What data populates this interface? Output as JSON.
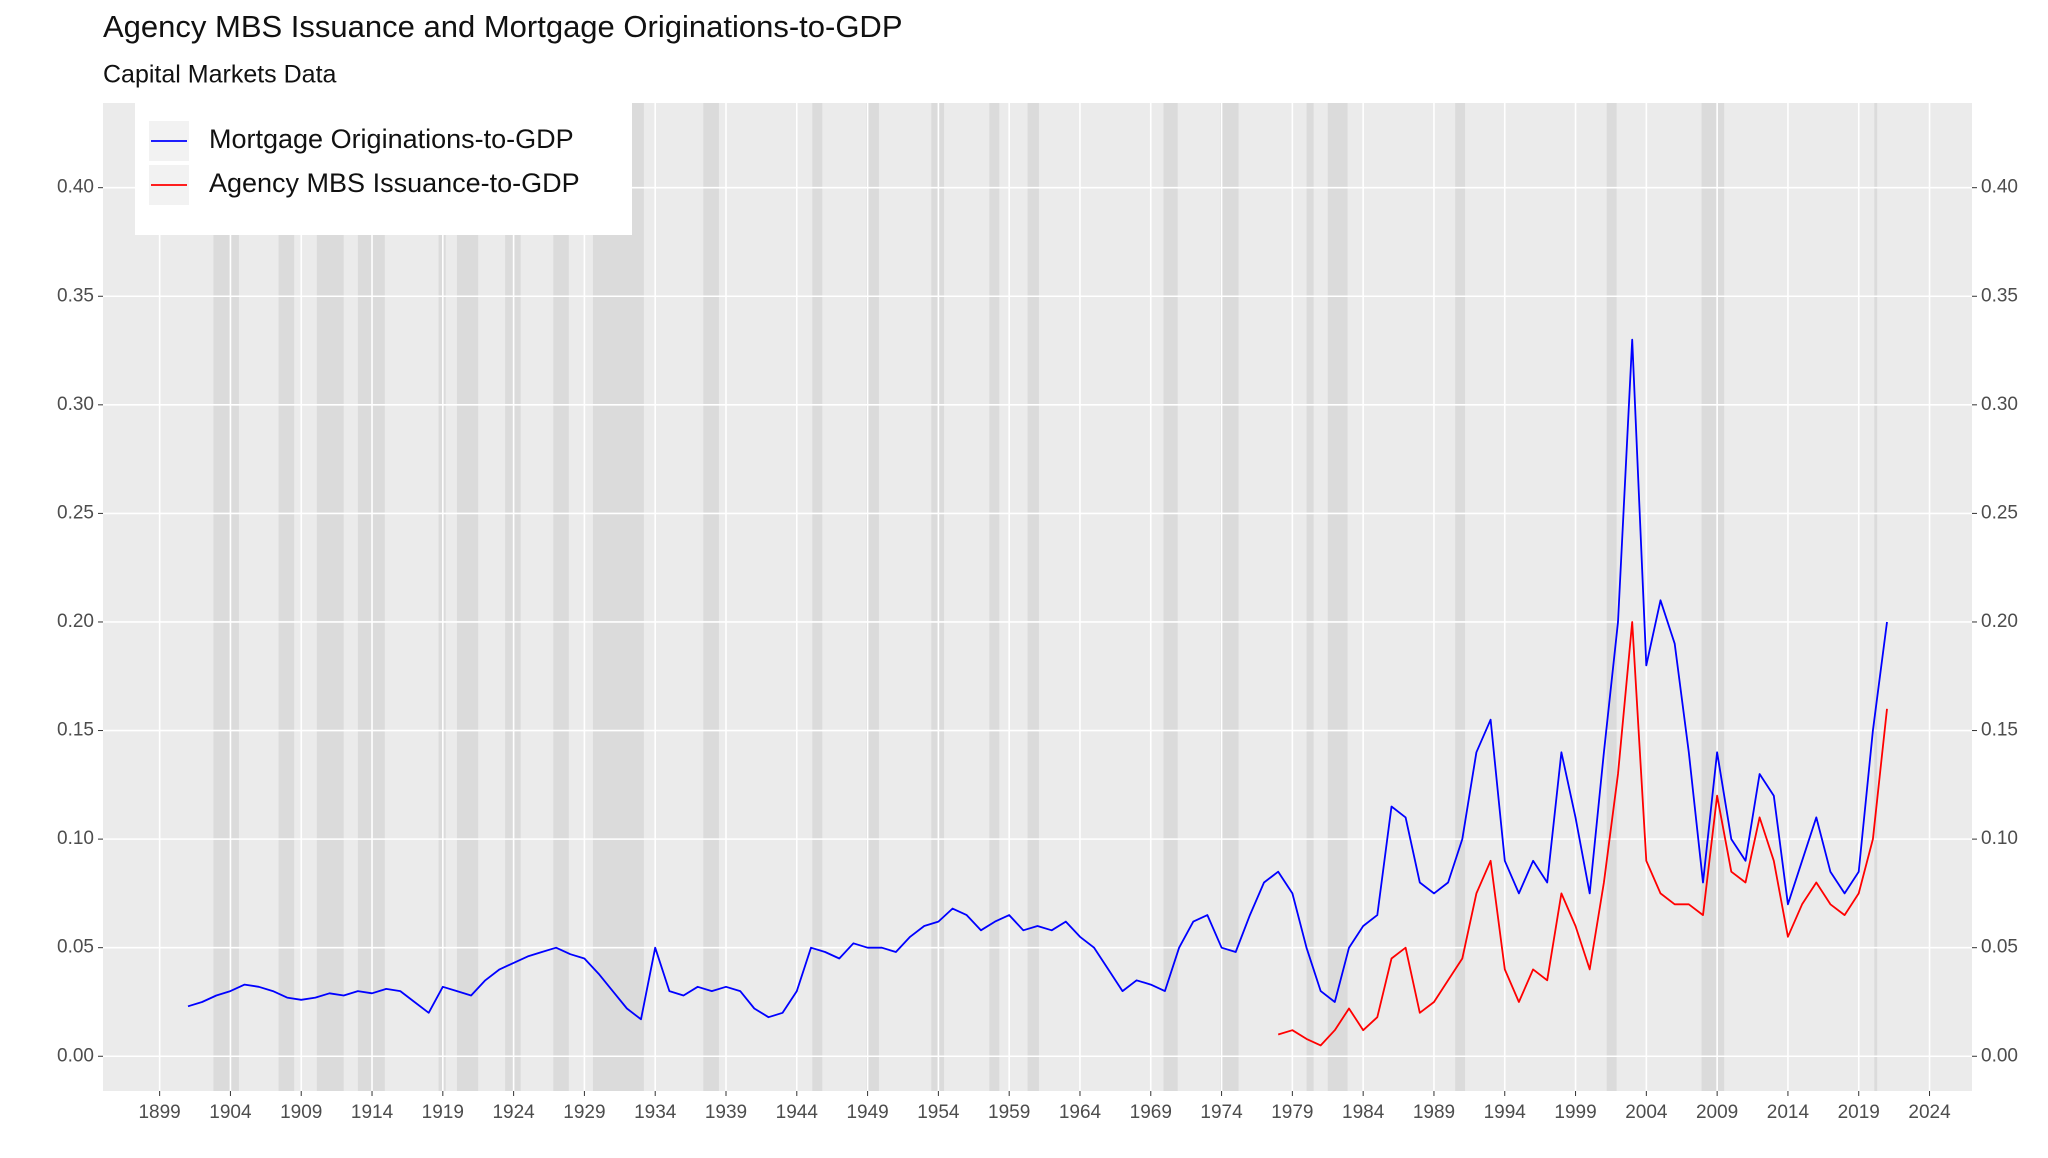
{
  "chart_data": {
    "type": "line",
    "title": "Agency MBS Issuance and Mortgage Originations-to-GDP",
    "subtitle": "Capital Markets Data",
    "x": [
      1901,
      1902,
      1903,
      1904,
      1905,
      1906,
      1907,
      1908,
      1909,
      1910,
      1911,
      1912,
      1913,
      1914,
      1915,
      1916,
      1917,
      1918,
      1919,
      1920,
      1921,
      1922,
      1923,
      1924,
      1925,
      1926,
      1927,
      1928,
      1929,
      1930,
      1931,
      1932,
      1933,
      1934,
      1935,
      1936,
      1937,
      1938,
      1939,
      1940,
      1941,
      1942,
      1943,
      1944,
      1945,
      1946,
      1947,
      1948,
      1949,
      1950,
      1951,
      1952,
      1953,
      1954,
      1955,
      1956,
      1957,
      1958,
      1959,
      1960,
      1961,
      1962,
      1963,
      1964,
      1965,
      1966,
      1967,
      1968,
      1969,
      1970,
      1971,
      1972,
      1973,
      1974,
      1975,
      1976,
      1977,
      1978,
      1979,
      1980,
      1981,
      1982,
      1983,
      1984,
      1985,
      1986,
      1987,
      1988,
      1989,
      1990,
      1991,
      1992,
      1993,
      1994,
      1995,
      1996,
      1997,
      1998,
      1999,
      2000,
      2001,
      2002,
      2003,
      2004,
      2005,
      2006,
      2007,
      2008,
      2009,
      2010,
      2011,
      2012,
      2013,
      2014,
      2015,
      2016,
      2017,
      2018,
      2019,
      2020,
      2021
    ],
    "series": [
      {
        "name": "Mortgage Originations-to-GDP",
        "color": "#0000ff",
        "values": [
          0.023,
          0.025,
          0.028,
          0.03,
          0.033,
          0.032,
          0.03,
          0.027,
          0.026,
          0.027,
          0.029,
          0.028,
          0.03,
          0.029,
          0.031,
          0.03,
          0.025,
          0.02,
          0.032,
          0.03,
          0.028,
          0.035,
          0.04,
          0.043,
          0.046,
          0.048,
          0.05,
          0.047,
          0.045,
          0.038,
          0.03,
          0.022,
          0.017,
          0.05,
          0.03,
          0.028,
          0.032,
          0.03,
          0.032,
          0.03,
          0.022,
          0.018,
          0.02,
          0.03,
          0.05,
          0.048,
          0.045,
          0.052,
          0.05,
          0.05,
          0.048,
          0.055,
          0.06,
          0.062,
          0.068,
          0.065,
          0.058,
          0.062,
          0.065,
          0.058,
          0.06,
          0.058,
          0.062,
          0.055,
          0.05,
          0.04,
          0.03,
          0.035,
          0.033,
          0.03,
          0.05,
          0.062,
          0.065,
          0.05,
          0.048,
          0.065,
          0.08,
          0.085,
          0.075,
          0.05,
          0.03,
          0.025,
          0.05,
          0.06,
          0.065,
          0.115,
          0.11,
          0.08,
          0.075,
          0.08,
          0.1,
          0.14,
          0.155,
          0.09,
          0.075,
          0.09,
          0.08,
          0.14,
          0.11,
          0.075,
          0.14,
          0.2,
          0.33,
          0.18,
          0.21,
          0.19,
          0.14,
          0.08,
          0.14,
          0.1,
          0.09,
          0.13,
          0.12,
          0.07,
          0.09,
          0.11,
          0.085,
          0.075,
          0.085,
          0.15,
          0.2
        ]
      },
      {
        "name": "Agency MBS Issuance-to-GDP",
        "color": "#ff0000",
        "values": [
          null,
          null,
          null,
          null,
          null,
          null,
          null,
          null,
          null,
          null,
          null,
          null,
          null,
          null,
          null,
          null,
          null,
          null,
          null,
          null,
          null,
          null,
          null,
          null,
          null,
          null,
          null,
          null,
          null,
          null,
          null,
          null,
          null,
          null,
          null,
          null,
          null,
          null,
          null,
          null,
          null,
          null,
          null,
          null,
          null,
          null,
          null,
          null,
          null,
          null,
          null,
          null,
          null,
          null,
          null,
          null,
          null,
          null,
          null,
          null,
          null,
          null,
          null,
          null,
          null,
          null,
          null,
          null,
          null,
          null,
          null,
          null,
          null,
          null,
          null,
          null,
          null,
          0.01,
          0.012,
          0.008,
          0.005,
          0.012,
          0.022,
          0.012,
          0.018,
          0.045,
          0.05,
          0.02,
          0.025,
          0.035,
          0.045,
          0.075,
          0.09,
          0.04,
          0.025,
          0.04,
          0.035,
          0.075,
          0.06,
          0.04,
          0.08,
          0.13,
          0.2,
          0.09,
          0.075,
          0.07,
          0.07,
          0.065,
          0.12,
          0.085,
          0.08,
          0.11,
          0.09,
          0.055,
          0.07,
          0.08,
          0.07,
          0.065,
          0.075,
          0.1,
          0.16
        ]
      }
    ],
    "recessions": [
      [
        1902.8,
        1904.6
      ],
      [
        1907.4,
        1908.5
      ],
      [
        1910.1,
        1912.0
      ],
      [
        1913.0,
        1914.9
      ],
      [
        1918.7,
        1919.2
      ],
      [
        1920.0,
        1921.5
      ],
      [
        1923.4,
        1924.5
      ],
      [
        1926.8,
        1927.9
      ],
      [
        1929.6,
        1933.2
      ],
      [
        1937.4,
        1938.5
      ],
      [
        1945.1,
        1945.8
      ],
      [
        1948.9,
        1949.8
      ],
      [
        1953.5,
        1954.4
      ],
      [
        1957.6,
        1958.3
      ],
      [
        1960.3,
        1961.1
      ],
      [
        1969.9,
        1970.9
      ],
      [
        1973.9,
        1975.2
      ],
      [
        1980.0,
        1980.5
      ],
      [
        1981.5,
        1982.9
      ],
      [
        1990.5,
        1991.2
      ],
      [
        2001.2,
        2001.9
      ],
      [
        2007.9,
        2009.5
      ],
      [
        2020.1,
        2020.3
      ]
    ],
    "xlim": [
      1895,
      2027
    ],
    "xticks": [
      1899,
      1904,
      1909,
      1914,
      1919,
      1924,
      1929,
      1934,
      1939,
      1944,
      1949,
      1954,
      1959,
      1964,
      1969,
      1974,
      1979,
      1984,
      1989,
      1994,
      1999,
      2004,
      2009,
      2014,
      2019,
      2024
    ],
    "ylim": [
      -0.016,
      0.439
    ],
    "yticks": [
      {
        "value": 0,
        "label": "0.00"
      },
      0.05,
      {
        "value": 0.1,
        "label": "0.10"
      },
      0.15,
      {
        "value": 0.2,
        "label": "0.20"
      },
      0.25,
      {
        "value": 0.3,
        "label": "0.30"
      },
      0.35,
      {
        "value": 0.4,
        "label": "0.40"
      }
    ],
    "y2lim": [
      -0.016,
      0.439
    ],
    "y2ticks": [
      {
        "value": 0,
        "label": "0.00"
      },
      0.05,
      {
        "value": 0.1,
        "label": "0.10"
      },
      0.15,
      {
        "value": 0.2,
        "label": "0.20"
      },
      0.25,
      {
        "value": 0.3,
        "label": "0.30"
      },
      0.35,
      {
        "value": 0.4,
        "label": "0.40"
      }
    ],
    "grid": true,
    "legend": "top-left"
  }
}
